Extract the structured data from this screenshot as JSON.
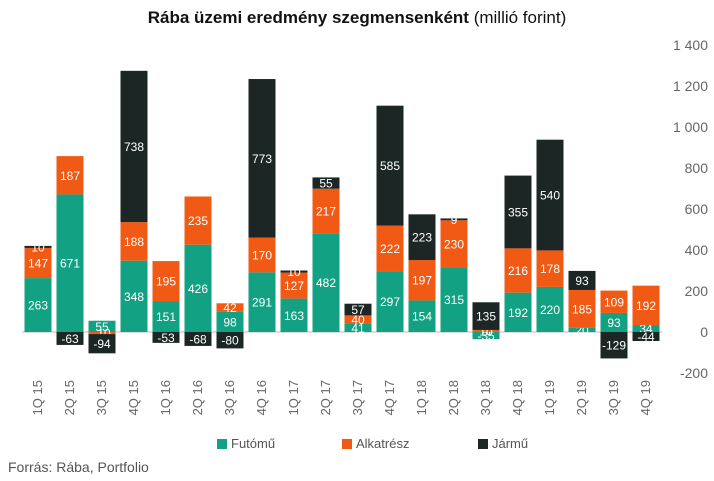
{
  "title": {
    "bold": "Rába üzemi eredmény szegmensenként",
    "rest": " (millió forint)"
  },
  "source": "Forrás: Rába, Portfolio",
  "colors": {
    "Futómű": "#12a283",
    "Alkatrész": "#f05a14",
    "Jármű": "#1c2624"
  },
  "chart_data": {
    "type": "bar",
    "stacked": true,
    "categories": [
      "1Q 15",
      "2Q 15",
      "3Q 15",
      "4Q 15",
      "1Q 16",
      "2Q 16",
      "3Q 16",
      "4Q 16",
      "1Q 17",
      "2Q 17",
      "3Q 17",
      "4Q 17",
      "1Q 18",
      "2Q 18",
      "3Q 18",
      "4Q 18",
      "1Q 19",
      "2Q 19",
      "3Q 19",
      "4Q 19"
    ],
    "series": [
      {
        "name": "Futómű",
        "values": [
          263,
          671,
          55,
          348,
          151,
          426,
          98,
          291,
          163,
          482,
          41,
          297,
          154,
          315,
          -35,
          192,
          220,
          20,
          93,
          34
        ]
      },
      {
        "name": "Alkatrész",
        "values": [
          147,
          187,
          -10,
          188,
          195,
          235,
          42,
          170,
          127,
          217,
          40,
          222,
          197,
          230,
          10,
          216,
          178,
          185,
          109,
          192
        ]
      },
      {
        "name": "Jármű",
        "values": [
          10,
          -63,
          -94,
          738,
          -53,
          -68,
          -80,
          773,
          10,
          55,
          57,
          585,
          223,
          9,
          135,
          355,
          540,
          93,
          -129,
          -44
        ]
      }
    ],
    "ylim": [
      -200,
      1400
    ],
    "yticks": [
      -200,
      0,
      200,
      400,
      600,
      800,
      1000,
      1200,
      1400
    ],
    "ytick_labels": [
      "-200",
      "0",
      "200",
      "400",
      "600",
      "800",
      "1 000",
      "1 200",
      "1 400"
    ],
    "y_axis_position": "right",
    "grid": false,
    "legend_position": "bottom"
  }
}
